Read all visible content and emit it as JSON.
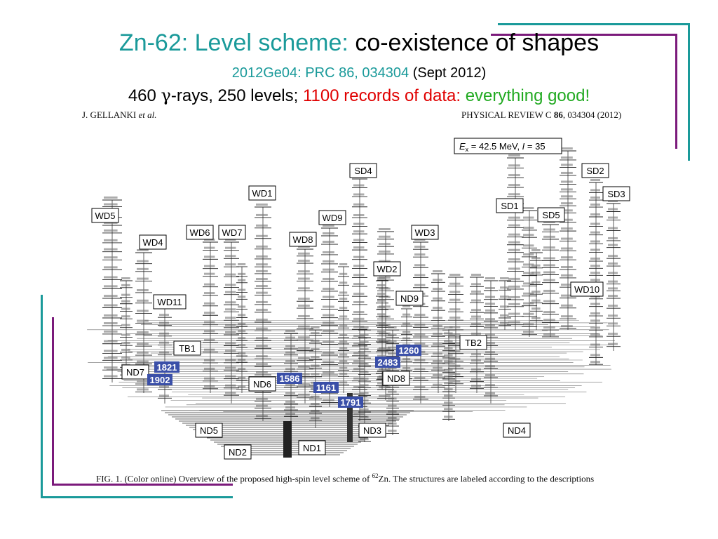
{
  "slide": {
    "title_part1": "Zn-62: Level scheme:",
    "title_part2": "co-existence of shapes",
    "reference": "2012Ge04: PRC 86, 034304",
    "date": "(Sept 2012)",
    "stats_count_prefix": "460",
    "gamma_symbol": "γ",
    "stats_rays": "-rays, 250 levels;",
    "records": "1100 records of data:",
    "verdict": "everything good!",
    "colors": {
      "teal": "#1a9a9a",
      "red": "#e00000",
      "green": "#22aa22",
      "purple": "#7b1a7b",
      "band_blue": "#3a4fa8"
    }
  },
  "figure": {
    "header_left_name": "J. GELLANKI",
    "header_left_etal": "et al.",
    "header_right_journal": "PHYSICAL REVIEW C",
    "header_right_volume": "86",
    "header_right_rest": ", 034304 (2012)",
    "excitation_label": "E",
    "excitation_sub": "x",
    "excitation_value": " = 42.5 MeV,  ",
    "spin_label": "I",
    "spin_value": " = 35",
    "caption_prefix": "FIG. 1.  (Color online) Overview of the proposed high-spin level scheme of ",
    "caption_mass": "62",
    "caption_suffix": "Zn. The structures are labeled according to the descriptions",
    "structures": [
      "WD5",
      "WD4",
      "WD1",
      "WD6",
      "WD7",
      "WD8",
      "WD9",
      "SD4",
      "WD3",
      "WD2",
      "SD1",
      "SD5",
      "SD2",
      "SD3",
      "WD10",
      "WD11",
      "TB1",
      "TB2",
      "ND9",
      "ND7",
      "ND6",
      "ND8",
      "ND5",
      "ND3",
      "ND4",
      "ND2",
      "ND1"
    ],
    "highlighted_levels": [
      "1821",
      "1902",
      "1586",
      "1260",
      "2483",
      "1161",
      "1791"
    ]
  }
}
